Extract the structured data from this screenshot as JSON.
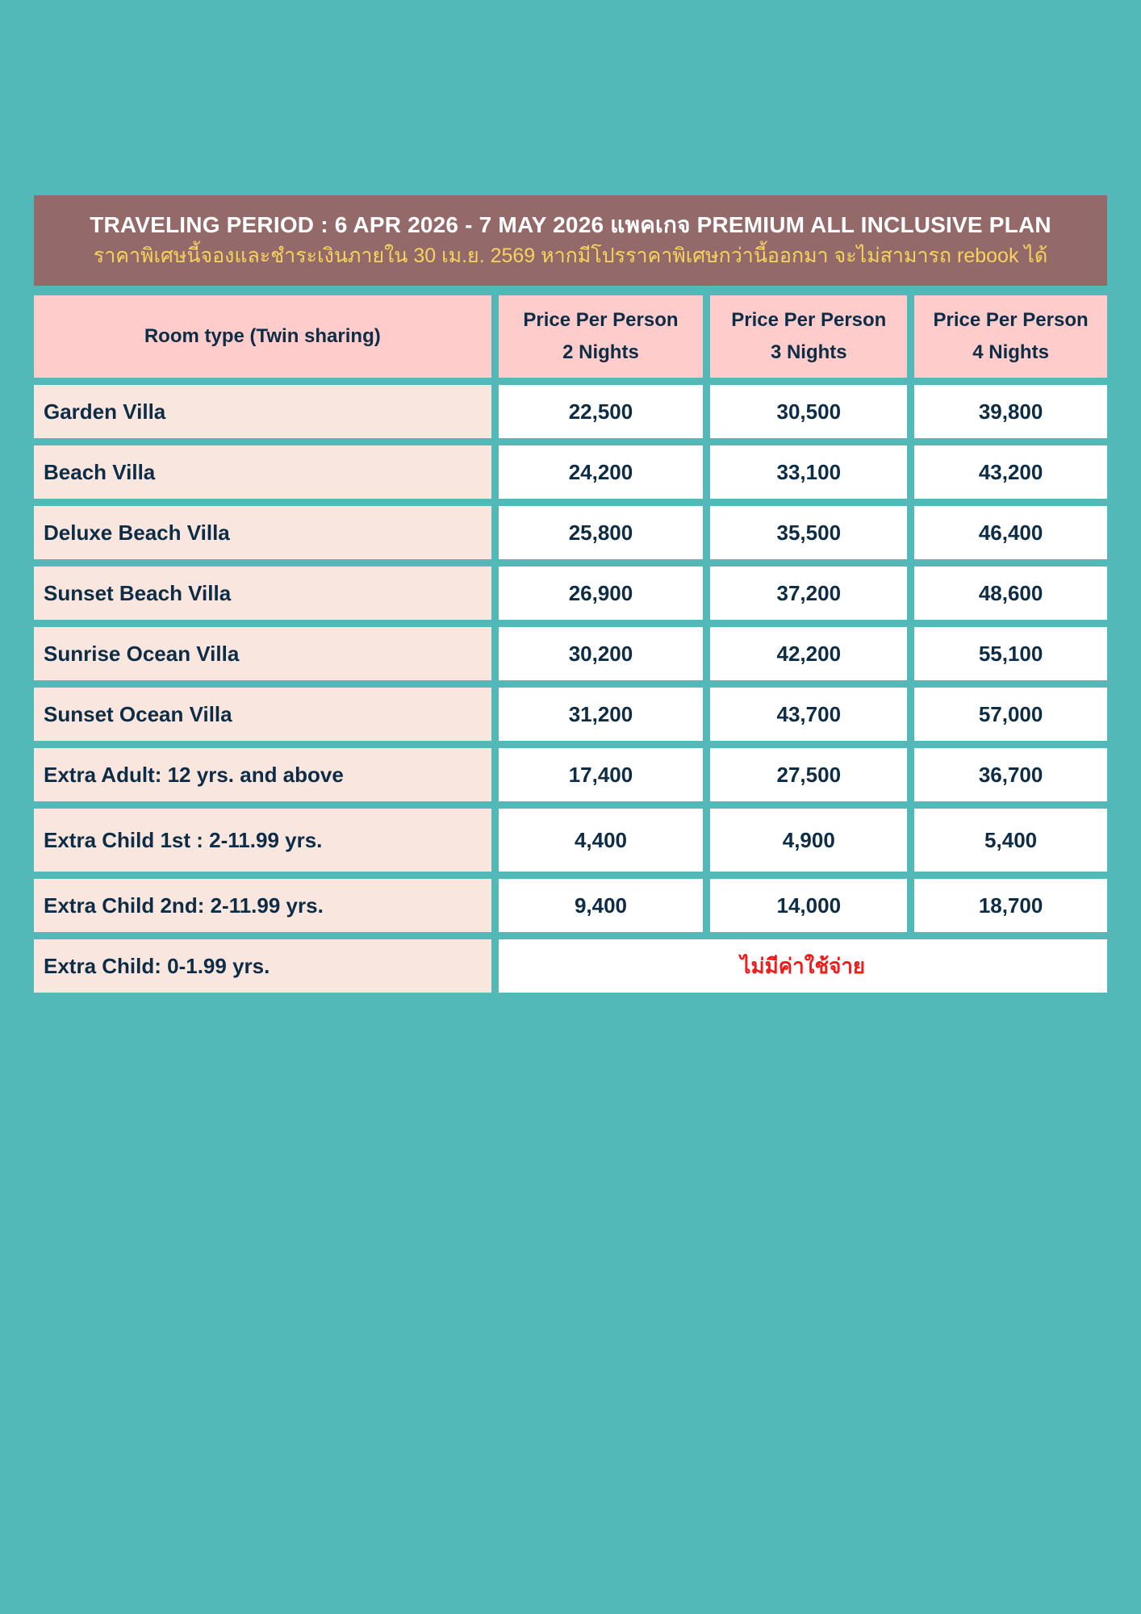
{
  "banner": {
    "title": "TRAVELING PERIOD : 6 APR 2026 - 7 MAY 2026 แพคเกจ PREMIUM ALL INCLUSIVE PLAN",
    "subtitle": "ราคาพิเศษนี้จองและชำระเงินภายใน 30 เม.ย. 2569 หากมีโปรราคาพิเศษกว่านี้ออกมา จะไม่สามารถ rebook ได้"
  },
  "table": {
    "headers": [
      {
        "line1": "Room type (Twin sharing)",
        "line2": ""
      },
      {
        "line1": "Price Per Person",
        "line2": "2 Nights"
      },
      {
        "line1": "Price Per Person",
        "line2": "3 Nights"
      },
      {
        "line1": "Price Per Person",
        "line2": "4 Nights"
      }
    ],
    "rows": [
      {
        "type": "Garden Villa",
        "n2": "22,500",
        "n3": "30,500",
        "n4": "39,800"
      },
      {
        "type": "Beach Villa",
        "n2": "24,200",
        "n3": "33,100",
        "n4": "43,200"
      },
      {
        "type": "Deluxe Beach Villa",
        "n2": "25,800",
        "n3": "35,500",
        "n4": "46,400"
      },
      {
        "type": "Sunset Beach Villa",
        "n2": "26,900",
        "n3": "37,200",
        "n4": "48,600"
      },
      {
        "type": "Sunrise Ocean Villa",
        "n2": "30,200",
        "n3": "42,200",
        "n4": "55,100"
      },
      {
        "type": "Sunset Ocean Villa",
        "n2": "31,200",
        "n3": "43,700",
        "n4": "57,000"
      },
      {
        "type": "Extra Adult: 12 yrs. and above",
        "n2": "17,400",
        "n3": "27,500",
        "n4": "36,700"
      },
      {
        "type": "Extra Child 1st : 2-11.99 yrs.",
        "n2": "4,400",
        "n3": "4,900",
        "n4": "5,400"
      },
      {
        "type": "Extra Child 2nd: 2-11.99 yrs.",
        "n2": "9,400",
        "n3": "14,000",
        "n4": "18,700"
      }
    ],
    "last_row": {
      "type": "Extra Child: 0-1.99 yrs.",
      "note": "ไม่มีค่าใช้จ่าย"
    }
  },
  "colors": {
    "background": "#53b9b8",
    "banner": "#936a69",
    "header_cells": "#ffcccc",
    "room_cells": "#f9e6df",
    "text": "#0d2c45",
    "subtitle": "#f6d35e",
    "free_note": "#ee1c1c"
  }
}
